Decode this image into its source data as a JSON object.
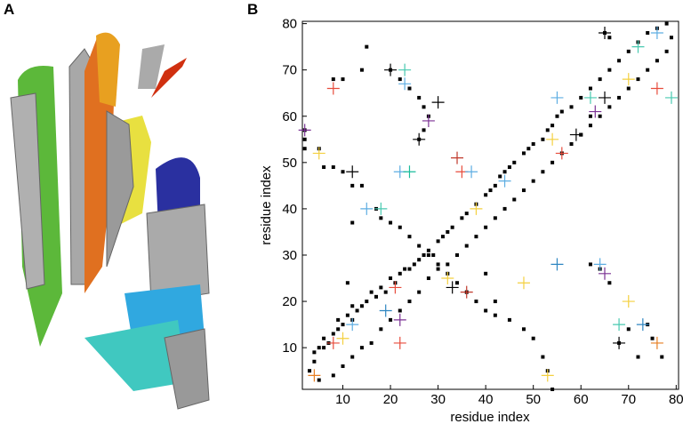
{
  "panel_labels": [
    "A",
    "B"
  ],
  "chart_data": {
    "type": "scatter",
    "xlabel": "residue index",
    "ylabel": "residue index",
    "xlim": [
      1.5,
      80.5
    ],
    "ylim": [
      1,
      80.5
    ],
    "xticks": [
      10,
      20,
      30,
      40,
      50,
      60,
      70,
      80
    ],
    "yticks": [
      10,
      20,
      30,
      40,
      50,
      60,
      70,
      80
    ],
    "series": [
      {
        "marker": "square",
        "color": "#000000",
        "x": [
          3,
          4,
          4,
          5,
          6,
          6,
          7,
          8,
          9,
          9,
          10,
          11,
          12,
          12,
          13,
          14,
          15,
          16,
          17,
          18,
          19,
          20,
          21,
          22,
          23,
          24,
          25,
          26,
          27,
          28,
          29,
          30,
          31,
          32,
          33,
          35,
          36,
          38,
          40,
          41,
          42,
          43,
          44,
          45,
          46,
          48,
          49,
          50,
          52,
          53,
          54,
          55,
          56,
          58,
          60,
          62,
          64,
          66,
          68,
          70,
          72,
          74,
          76,
          78,
          5,
          8,
          10,
          12,
          14,
          16,
          18,
          20,
          22,
          24,
          26,
          28,
          30,
          32,
          34,
          36,
          38,
          40,
          42,
          44,
          46,
          48,
          50,
          52,
          54,
          56,
          58,
          60,
          62,
          64,
          66,
          68,
          70,
          72,
          74,
          76,
          78,
          79,
          18,
          20,
          22,
          24,
          26,
          28,
          30,
          32,
          34,
          36,
          38,
          40,
          42,
          45,
          48,
          50,
          52,
          53,
          54,
          12,
          14,
          10,
          6,
          5,
          8,
          20,
          22,
          24,
          26,
          27,
          28,
          26,
          27,
          12,
          11,
          8,
          10,
          14,
          15,
          17,
          62,
          64,
          66,
          68,
          70,
          72,
          74,
          75,
          77,
          40,
          42,
          60,
          62,
          65,
          66,
          2,
          2,
          2
        ],
        "y": [
          5,
          7,
          9,
          10,
          10,
          12,
          11,
          13,
          14,
          16,
          15,
          17,
          16,
          19,
          18,
          19,
          20,
          22,
          21,
          23,
          22,
          25,
          24,
          26,
          27,
          27,
          28,
          29,
          30,
          31,
          30,
          33,
          34,
          35,
          36,
          38,
          39,
          41,
          43,
          44,
          45,
          47,
          48,
          49,
          50,
          52,
          53,
          54,
          55,
          57,
          58,
          60,
          61,
          62,
          64,
          66,
          68,
          70,
          72,
          74,
          76,
          78,
          79,
          80,
          3,
          4,
          6,
          8,
          10,
          11,
          14,
          16,
          18,
          20,
          22,
          25,
          27,
          28,
          30,
          32,
          34,
          36,
          38,
          40,
          42,
          44,
          46,
          48,
          50,
          52,
          54,
          56,
          58,
          60,
          62,
          64,
          66,
          68,
          70,
          72,
          74,
          77,
          38,
          37,
          36,
          34,
          32,
          30,
          28,
          26,
          24,
          22,
          20,
          18,
          17,
          16,
          14,
          12,
          8,
          5,
          1,
          45,
          45,
          48,
          49,
          53,
          49,
          70,
          68,
          66,
          64,
          62,
          60,
          55,
          57,
          37,
          24,
          68,
          68,
          70,
          75,
          40,
          28,
          27,
          24,
          11,
          14,
          8,
          15,
          12,
          8,
          26,
          20,
          56,
          60,
          78,
          77,
          53,
          55,
          57
        ]
      },
      {
        "marker": "cross",
        "colors": [
          "#7b3294",
          "#f4d03f",
          "#e74c3c",
          "#000000",
          "#5dade2",
          "#48c9b0",
          "#000000",
          "#5dade2",
          "#1abc9c",
          "#48c9b0",
          "#5dade2",
          "#000000",
          "#7b3294",
          "#000000",
          "#c0392b",
          "#e74c3c",
          "#5dade2",
          "#000000",
          "#c0392b",
          "#f4d03f",
          "#e74c3c",
          "#7b3294",
          "#e74c3c",
          "#2e86c1",
          "#5dade2",
          "#f4d03f",
          "#e74c3c",
          "#e67e22",
          "#f4d03f",
          "#2e86c1",
          "#f4d03f",
          "#5dade2",
          "#7b3294",
          "#f4d03f",
          "#48c9b0",
          "#000000",
          "#2e86c1",
          "#e67e22",
          "#5dade2",
          "#48c9b0",
          "#7b3294",
          "#000000",
          "#f4d03f",
          "#48c9b0",
          "#5dade2",
          "#e74c3c",
          "#48c9b0",
          "#000000",
          "#e74c3c",
          "#f4d03f",
          "#5dade2",
          "#f4d03f",
          "#000000"
        ],
        "x": [
          2,
          5,
          8,
          12,
          15,
          18,
          20,
          22,
          24,
          23,
          23,
          30,
          28,
          26,
          34,
          35,
          37,
          33,
          36,
          32,
          21,
          22,
          22,
          19,
          12,
          10,
          8,
          4,
          48,
          55,
          53,
          64,
          65,
          70,
          68,
          68,
          73,
          76,
          55,
          62,
          63,
          65,
          70,
          72,
          76,
          76,
          79,
          59,
          56,
          54,
          44,
          38,
          65
        ],
        "y": [
          57,
          52,
          66,
          48,
          40,
          40,
          70,
          48,
          48,
          70,
          67,
          63,
          59,
          55,
          51,
          48,
          48,
          23,
          22,
          25,
          23,
          16,
          11,
          18,
          15,
          12,
          11,
          4,
          24,
          28,
          4,
          28,
          26,
          20,
          15,
          11,
          15,
          11,
          64,
          64,
          61,
          78,
          68,
          75,
          78,
          66,
          64,
          56,
          52,
          55,
          46,
          40,
          64
        ]
      }
    ]
  }
}
